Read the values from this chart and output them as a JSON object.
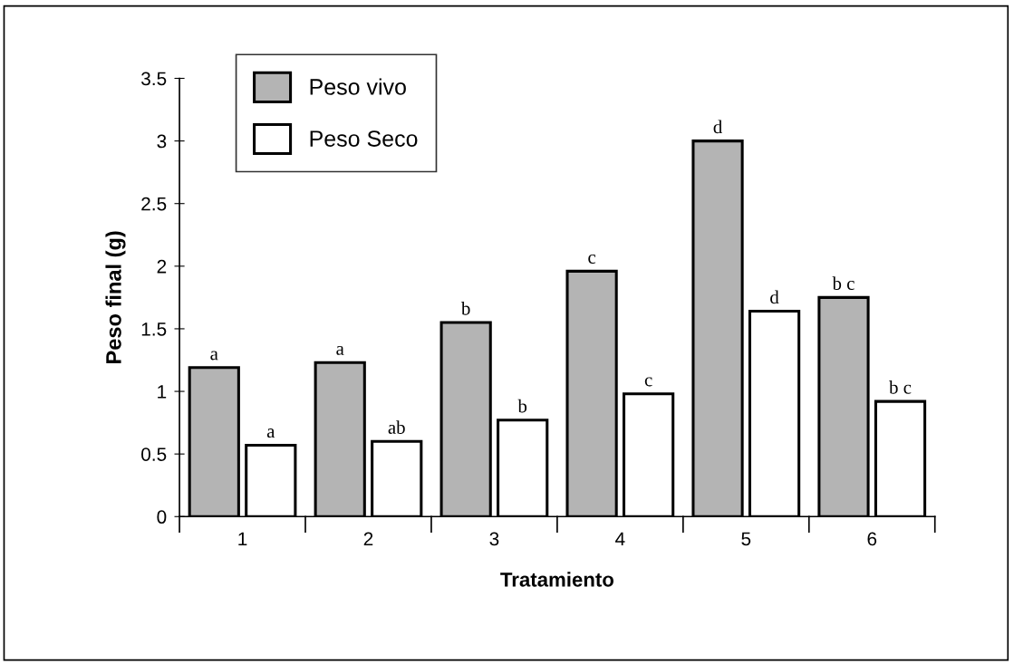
{
  "chart_data": {
    "type": "bar",
    "xlabel": "Tratamiento",
    "ylabel": "Peso final (g)",
    "categories": [
      "1",
      "2",
      "3",
      "4",
      "5",
      "6"
    ],
    "series": [
      {
        "name": "Peso vivo",
        "color": "#b4b4b4",
        "values": [
          1.19,
          1.23,
          1.55,
          1.96,
          3.0,
          1.75
        ]
      },
      {
        "name": "Peso Seco",
        "color": "#ffffff",
        "values": [
          0.57,
          0.6,
          0.77,
          0.98,
          1.64,
          0.92
        ]
      }
    ],
    "ylim": [
      0,
      3.5
    ],
    "yticks": [
      0,
      0.5,
      1,
      1.5,
      2,
      2.5,
      3,
      3.5
    ],
    "grid": false,
    "legend": "top left",
    "annotations": [
      {
        "text": "a",
        "x": "1",
        "y": 1.19
      },
      {
        "text": "a",
        "x": "1",
        "y": 0.57
      },
      {
        "text": "a",
        "x": "2",
        "y": 1.23
      },
      {
        "text": "ab",
        "x": "2",
        "y": 0.6
      },
      {
        "text": "b",
        "x": "3",
        "y": 1.55
      },
      {
        "text": "b",
        "x": "3",
        "y": 0.77
      },
      {
        "text": "c",
        "x": "4",
        "y": 1.96
      },
      {
        "text": "c",
        "x": "4",
        "y": 0.98
      },
      {
        "text": "d",
        "x": "5",
        "y": 3.0
      },
      {
        "text": "d",
        "x": "5",
        "y": 1.64
      },
      {
        "text": "b c",
        "x": "6",
        "y": 1.75
      },
      {
        "text": "b c",
        "x": "6",
        "y": 0.92
      }
    ]
  }
}
